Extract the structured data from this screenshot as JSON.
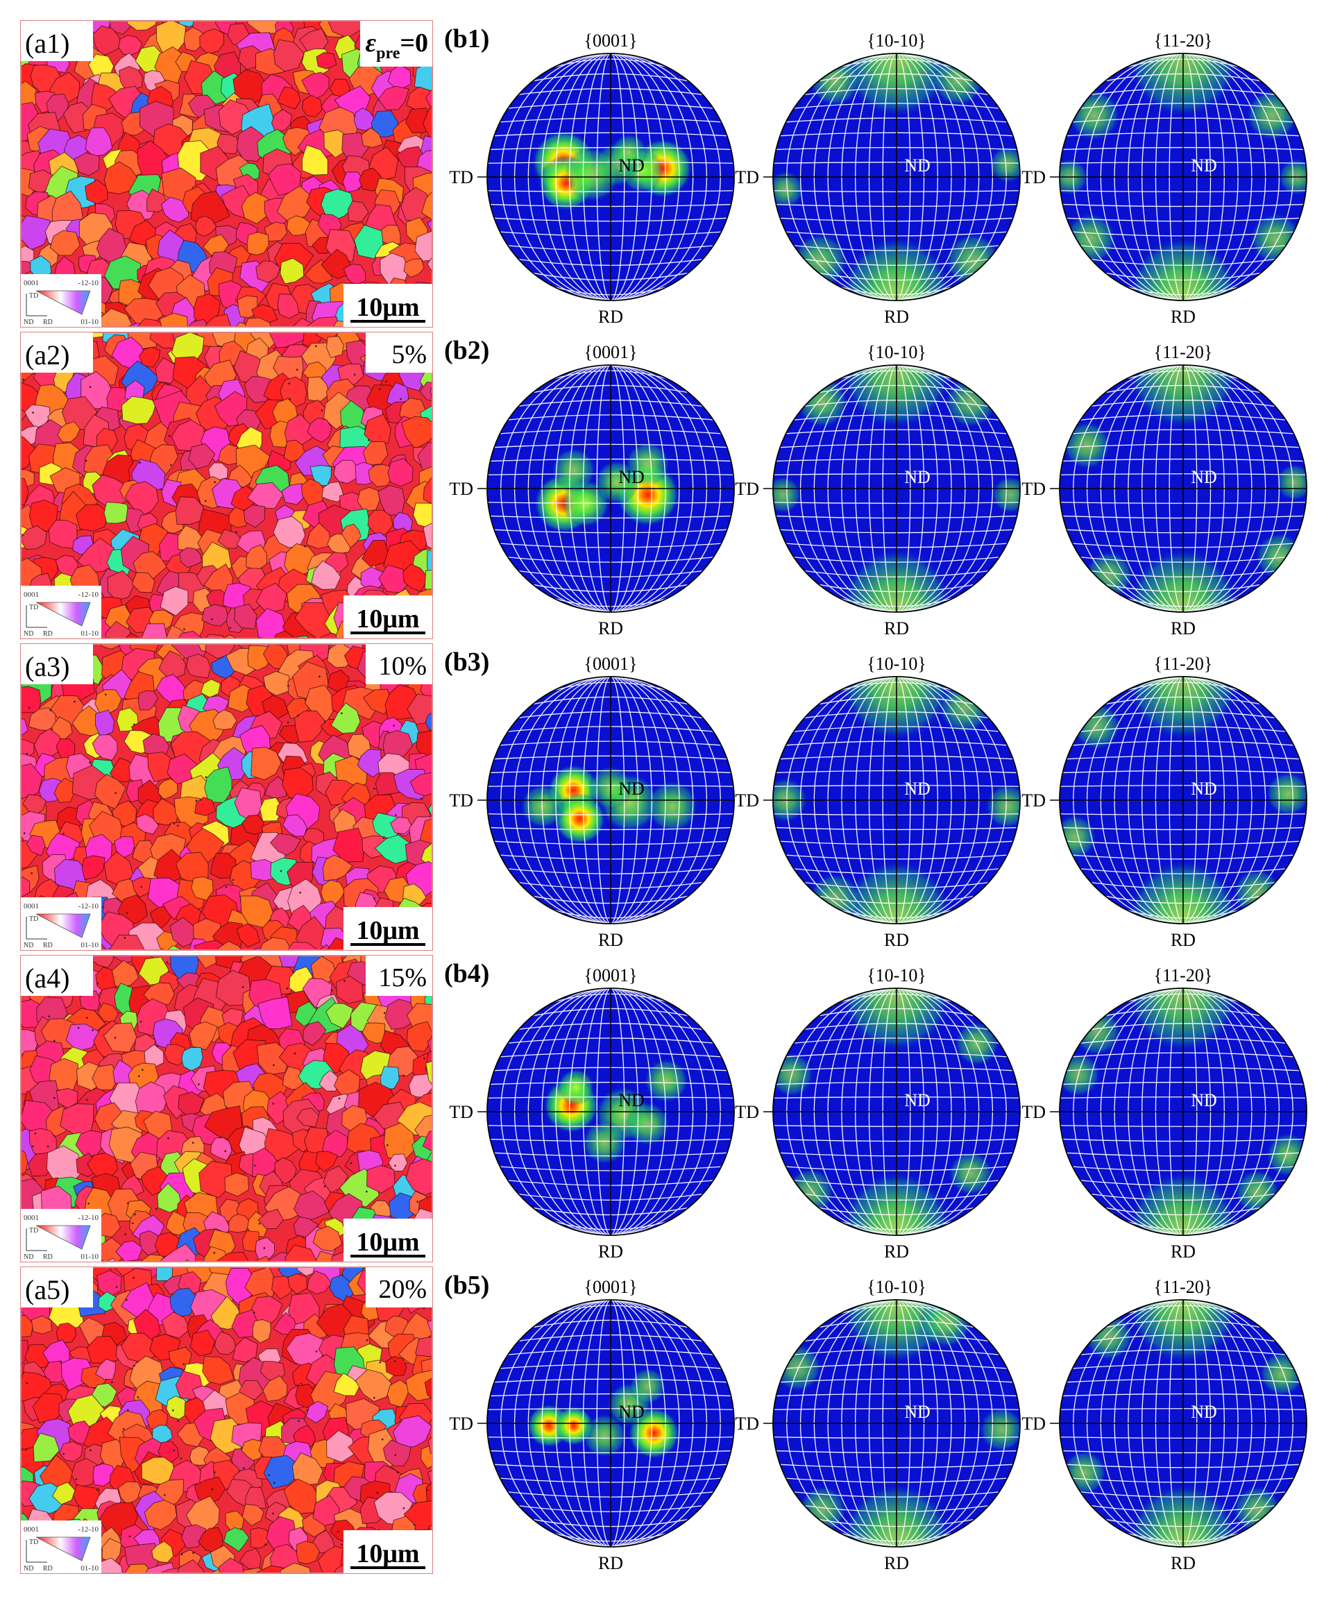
{
  "figure": {
    "rows": [
      {
        "map_label": "(a1)",
        "strain": {
          "type": "epsilon",
          "symbol": "ε",
          "subscript": "pre",
          "value": "=0"
        },
        "pf_label": "(b1)",
        "scale_bar": "10μm",
        "legend": {
          "tl": "0001",
          "tr": "-12-10",
          "br": "01-10",
          "ax_td": "TD",
          "ax_nd": "ND",
          "ax_rd": "RD"
        },
        "seed": 11,
        "dots": 0,
        "poles": [
          {
            "title": "{0001}",
            "nd": "ND",
            "hot": [
              [
                -0.38,
                -0.12,
                0.16,
                1.0
              ],
              [
                -0.36,
                0.05,
                0.14,
                0.9
              ],
              [
                0.42,
                -0.07,
                0.15,
                1.0
              ],
              [
                0.25,
                -0.05,
                0.12,
                0.6
              ],
              [
                0.05,
                -0.1,
                0.12,
                0.45
              ],
              [
                -0.15,
                -0.02,
                0.15,
                0.5
              ],
              [
                0.15,
                -0.2,
                0.1,
                0.4
              ]
            ]
          },
          {
            "title": "{10-10}",
            "nd": "ND",
            "hot": [
              [
                0,
                -0.93,
                0.3,
                0.5
              ],
              [
                0,
                0.93,
                0.3,
                0.55
              ],
              [
                -0.5,
                -0.78,
                0.14,
                0.35
              ],
              [
                0.5,
                -0.78,
                0.14,
                0.35
              ],
              [
                -0.62,
                0.68,
                0.15,
                0.35
              ],
              [
                0.62,
                0.68,
                0.15,
                0.35
              ],
              [
                0.9,
                -0.1,
                0.1,
                0.3
              ],
              [
                -0.9,
                0.1,
                0.1,
                0.3
              ]
            ]
          },
          {
            "title": "{11-20}",
            "nd": "ND",
            "hot": [
              [
                0,
                -0.93,
                0.3,
                0.45
              ],
              [
                0,
                0.93,
                0.3,
                0.55
              ],
              [
                -0.72,
                -0.5,
                0.14,
                0.35
              ],
              [
                0.72,
                -0.5,
                0.14,
                0.35
              ],
              [
                -0.75,
                0.5,
                0.14,
                0.35
              ],
              [
                0.75,
                0.5,
                0.14,
                0.35
              ],
              [
                0.92,
                0,
                0.1,
                0.3
              ],
              [
                -0.92,
                0,
                0.1,
                0.3
              ]
            ]
          }
        ]
      },
      {
        "map_label": "(a2)",
        "strain": {
          "type": "plain",
          "value": "5%"
        },
        "pf_label": "(b2)",
        "scale_bar": "10μm",
        "legend": {
          "tl": "0001",
          "tr": "-12-10",
          "br": "01-10",
          "ax_td": "TD",
          "ax_nd": "ND",
          "ax_rd": "RD"
        },
        "seed": 23,
        "dots": 30,
        "poles": [
          {
            "title": "{0001}",
            "nd": "ND",
            "hot": [
              [
                -0.38,
                0.12,
                0.15,
                0.8
              ],
              [
                -0.2,
                0.12,
                0.13,
                0.7
              ],
              [
                0.3,
                0.05,
                0.16,
                1.0
              ],
              [
                0.05,
                -0.05,
                0.12,
                0.5
              ],
              [
                0.3,
                -0.2,
                0.12,
                0.45
              ],
              [
                -0.3,
                -0.15,
                0.12,
                0.4
              ]
            ]
          },
          {
            "title": "{10-10}",
            "nd": "ND",
            "hot": [
              [
                0,
                -0.93,
                0.3,
                0.45
              ],
              [
                0,
                0.93,
                0.3,
                0.5
              ],
              [
                -0.6,
                -0.7,
                0.14,
                0.35
              ],
              [
                0.6,
                -0.7,
                0.14,
                0.3
              ],
              [
                -0.92,
                0.05,
                0.1,
                0.3
              ],
              [
                0.92,
                0.05,
                0.1,
                0.3
              ]
            ]
          },
          {
            "title": "{11-20}",
            "nd": "ND",
            "hot": [
              [
                0,
                -0.93,
                0.3,
                0.45
              ],
              [
                0,
                0.93,
                0.3,
                0.5
              ],
              [
                -0.78,
                -0.35,
                0.13,
                0.35
              ],
              [
                0.78,
                0.55,
                0.13,
                0.35
              ],
              [
                -0.6,
                0.7,
                0.13,
                0.3
              ],
              [
                0.9,
                -0.05,
                0.1,
                0.3
              ]
            ]
          }
        ]
      },
      {
        "map_label": "(a3)",
        "strain": {
          "type": "plain",
          "value": "10%"
        },
        "pf_label": "(b3)",
        "scale_bar": "10μm",
        "legend": {
          "tl": "0001",
          "tr": "-12-10",
          "br": "01-10",
          "ax_td": "TD",
          "ax_nd": "ND",
          "ax_rd": "RD"
        },
        "seed": 37,
        "dots": 45,
        "poles": [
          {
            "title": "{0001}",
            "nd": "ND",
            "hot": [
              [
                -0.3,
                -0.08,
                0.13,
                1.0
              ],
              [
                -0.25,
                0.15,
                0.13,
                1.0
              ],
              [
                0.15,
                0.02,
                0.16,
                0.55
              ],
              [
                0.5,
                0.05,
                0.14,
                0.45
              ],
              [
                -0.55,
                0.05,
                0.12,
                0.45
              ],
              [
                0.0,
                -0.1,
                0.12,
                0.4
              ]
            ]
          },
          {
            "title": "{10-10}",
            "nd": "ND",
            "hot": [
              [
                0,
                -0.93,
                0.3,
                0.5
              ],
              [
                0,
                0.93,
                0.3,
                0.5
              ],
              [
                -0.9,
                0.0,
                0.12,
                0.35
              ],
              [
                0.9,
                0.05,
                0.12,
                0.35
              ],
              [
                -0.5,
                0.8,
                0.14,
                0.3
              ],
              [
                0.55,
                -0.75,
                0.14,
                0.3
              ]
            ]
          },
          {
            "title": "{11-20}",
            "nd": "ND",
            "hot": [
              [
                0,
                -0.93,
                0.3,
                0.45
              ],
              [
                0,
                0.93,
                0.3,
                0.55
              ],
              [
                -0.88,
                0.3,
                0.12,
                0.35
              ],
              [
                0.85,
                -0.05,
                0.12,
                0.4
              ],
              [
                -0.7,
                -0.6,
                0.13,
                0.3
              ],
              [
                0.6,
                0.75,
                0.13,
                0.3
              ]
            ]
          }
        ]
      },
      {
        "map_label": "(a4)",
        "strain": {
          "type": "plain",
          "value": "15%"
        },
        "pf_label": "(b4)",
        "scale_bar": "10μm",
        "legend": {
          "tl": "0001",
          "tr": "-12-10",
          "br": "01-10",
          "ax_td": "TD",
          "ax_nd": "ND",
          "ax_rd": "RD"
        },
        "seed": 51,
        "dots": 55,
        "poles": [
          {
            "title": "{0001}",
            "nd": "ND",
            "hot": [
              [
                -0.32,
                -0.05,
                0.14,
                1.0
              ],
              [
                -0.28,
                -0.2,
                0.1,
                0.7
              ],
              [
                0.1,
                0.02,
                0.15,
                0.55
              ],
              [
                0.45,
                -0.25,
                0.12,
                0.45
              ],
              [
                -0.05,
                0.25,
                0.12,
                0.4
              ],
              [
                0.3,
                0.1,
                0.12,
                0.4
              ]
            ]
          },
          {
            "title": "{10-10}",
            "nd": "ND",
            "hot": [
              [
                0,
                -0.93,
                0.3,
                0.45
              ],
              [
                0,
                0.93,
                0.3,
                0.55
              ],
              [
                0.65,
                -0.55,
                0.12,
                0.35
              ],
              [
                0.6,
                0.5,
                0.12,
                0.35
              ],
              [
                -0.85,
                -0.3,
                0.12,
                0.3
              ],
              [
                -0.7,
                0.65,
                0.13,
                0.3
              ]
            ]
          },
          {
            "title": "{11-20}",
            "nd": "ND",
            "hot": [
              [
                0,
                -0.93,
                0.3,
                0.45
              ],
              [
                0,
                0.93,
                0.3,
                0.5
              ],
              [
                0.6,
                0.65,
                0.12,
                0.35
              ],
              [
                0.85,
                0.35,
                0.12,
                0.35
              ],
              [
                -0.85,
                -0.3,
                0.12,
                0.3
              ],
              [
                -0.7,
                -0.65,
                0.13,
                0.3
              ]
            ]
          }
        ]
      },
      {
        "map_label": "(a5)",
        "strain": {
          "type": "plain",
          "value": "20%"
        },
        "pf_label": "(b5)",
        "scale_bar": "10μm",
        "legend": {
          "tl": "0001",
          "tr": "-12-10",
          "br": "01-10",
          "ax_td": "TD",
          "ax_nd": "ND",
          "ax_rd": "RD"
        },
        "seed": 67,
        "dots": 50,
        "poles": [
          {
            "title": "{0001}",
            "nd": "ND",
            "hot": [
              [
                -0.5,
                0.02,
                0.11,
                1.0
              ],
              [
                -0.3,
                0.02,
                0.1,
                0.9
              ],
              [
                0.35,
                0.08,
                0.13,
                0.95
              ],
              [
                0.15,
                -0.15,
                0.12,
                0.45
              ],
              [
                -0.05,
                0.1,
                0.12,
                0.4
              ],
              [
                0.3,
                -0.3,
                0.1,
                0.35
              ]
            ]
          },
          {
            "title": "{10-10}",
            "nd": "ND",
            "hot": [
              [
                0,
                -0.93,
                0.3,
                0.5
              ],
              [
                0,
                0.93,
                0.3,
                0.5
              ],
              [
                0.4,
                -0.82,
                0.14,
                0.4
              ],
              [
                0.85,
                0.05,
                0.12,
                0.35
              ],
              [
                -0.8,
                -0.45,
                0.13,
                0.3
              ],
              [
                -0.6,
                0.7,
                0.13,
                0.3
              ]
            ]
          },
          {
            "title": "{11-20}",
            "nd": "ND",
            "hot": [
              [
                0,
                -0.93,
                0.3,
                0.5
              ],
              [
                0,
                0.93,
                0.3,
                0.5
              ],
              [
                0.8,
                -0.4,
                0.12,
                0.35
              ],
              [
                -0.8,
                0.4,
                0.12,
                0.35
              ],
              [
                0.6,
                0.7,
                0.13,
                0.3
              ],
              [
                -0.6,
                -0.7,
                0.13,
                0.3
              ]
            ]
          }
        ]
      }
    ],
    "axis_labels": {
      "left": "TD",
      "bottom": "RD"
    },
    "colors": {
      "pf_background": "#0a10d0",
      "pf_grid": "#ffffff",
      "pf_axes": "#000000",
      "map_border": "#d98080",
      "label_text": "#000000"
    },
    "grain_palette": [
      "#ff2222",
      "#ff3333",
      "#ee1a1a",
      "#ff4422",
      "#ff5533",
      "#f23a55",
      "#ff3366",
      "#ff2a77",
      "#e83370",
      "#ff6633",
      "#ff7722",
      "#ff8844",
      "#ff55aa",
      "#ff33cc",
      "#ee44dd",
      "#cc44ee",
      "#ff99bb",
      "#ffee33",
      "#ddee22",
      "#99ee44",
      "#44dd55",
      "#33ee99",
      "#44ccee",
      "#3366ee",
      "#ffbb33",
      "#ff1a44",
      "#f5304a",
      "#ff4060",
      "#ee2244",
      "#ff6644"
    ]
  }
}
